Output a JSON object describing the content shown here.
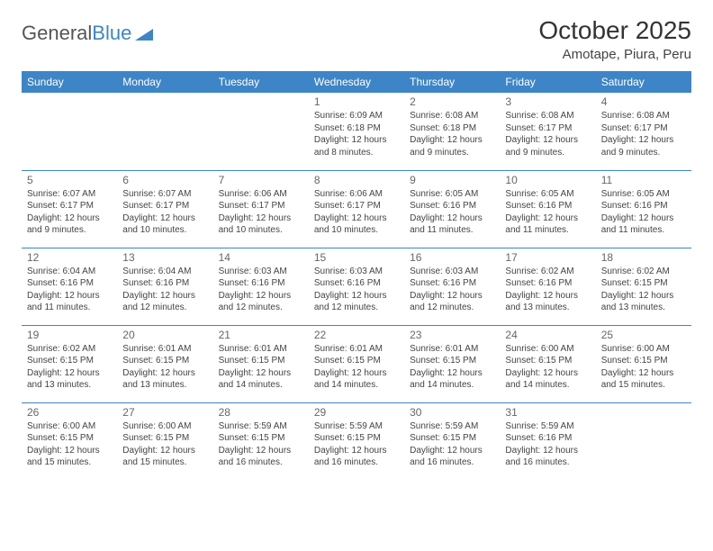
{
  "logo": {
    "word1": "General",
    "word2": "Blue"
  },
  "title": "October 2025",
  "location": "Amotape, Piura, Peru",
  "colors": {
    "header_bg": "#3d85c6",
    "header_text": "#ffffff",
    "border": "#3d85c6",
    "daynum": "#666666",
    "body_text": "#444444",
    "logo_gray": "#555555",
    "logo_blue": "#3d85c6",
    "page_bg": "#ffffff"
  },
  "weekdays": [
    "Sunday",
    "Monday",
    "Tuesday",
    "Wednesday",
    "Thursday",
    "Friday",
    "Saturday"
  ],
  "weeks": [
    [
      null,
      null,
      null,
      {
        "d": "1",
        "sr": "6:09 AM",
        "ss": "6:18 PM",
        "dl": "12 hours and 8 minutes."
      },
      {
        "d": "2",
        "sr": "6:08 AM",
        "ss": "6:18 PM",
        "dl": "12 hours and 9 minutes."
      },
      {
        "d": "3",
        "sr": "6:08 AM",
        "ss": "6:17 PM",
        "dl": "12 hours and 9 minutes."
      },
      {
        "d": "4",
        "sr": "6:08 AM",
        "ss": "6:17 PM",
        "dl": "12 hours and 9 minutes."
      }
    ],
    [
      {
        "d": "5",
        "sr": "6:07 AM",
        "ss": "6:17 PM",
        "dl": "12 hours and 9 minutes."
      },
      {
        "d": "6",
        "sr": "6:07 AM",
        "ss": "6:17 PM",
        "dl": "12 hours and 10 minutes."
      },
      {
        "d": "7",
        "sr": "6:06 AM",
        "ss": "6:17 PM",
        "dl": "12 hours and 10 minutes."
      },
      {
        "d": "8",
        "sr": "6:06 AM",
        "ss": "6:17 PM",
        "dl": "12 hours and 10 minutes."
      },
      {
        "d": "9",
        "sr": "6:05 AM",
        "ss": "6:16 PM",
        "dl": "12 hours and 11 minutes."
      },
      {
        "d": "10",
        "sr": "6:05 AM",
        "ss": "6:16 PM",
        "dl": "12 hours and 11 minutes."
      },
      {
        "d": "11",
        "sr": "6:05 AM",
        "ss": "6:16 PM",
        "dl": "12 hours and 11 minutes."
      }
    ],
    [
      {
        "d": "12",
        "sr": "6:04 AM",
        "ss": "6:16 PM",
        "dl": "12 hours and 11 minutes."
      },
      {
        "d": "13",
        "sr": "6:04 AM",
        "ss": "6:16 PM",
        "dl": "12 hours and 12 minutes."
      },
      {
        "d": "14",
        "sr": "6:03 AM",
        "ss": "6:16 PM",
        "dl": "12 hours and 12 minutes."
      },
      {
        "d": "15",
        "sr": "6:03 AM",
        "ss": "6:16 PM",
        "dl": "12 hours and 12 minutes."
      },
      {
        "d": "16",
        "sr": "6:03 AM",
        "ss": "6:16 PM",
        "dl": "12 hours and 12 minutes."
      },
      {
        "d": "17",
        "sr": "6:02 AM",
        "ss": "6:16 PM",
        "dl": "12 hours and 13 minutes."
      },
      {
        "d": "18",
        "sr": "6:02 AM",
        "ss": "6:15 PM",
        "dl": "12 hours and 13 minutes."
      }
    ],
    [
      {
        "d": "19",
        "sr": "6:02 AM",
        "ss": "6:15 PM",
        "dl": "12 hours and 13 minutes."
      },
      {
        "d": "20",
        "sr": "6:01 AM",
        "ss": "6:15 PM",
        "dl": "12 hours and 13 minutes."
      },
      {
        "d": "21",
        "sr": "6:01 AM",
        "ss": "6:15 PM",
        "dl": "12 hours and 14 minutes."
      },
      {
        "d": "22",
        "sr": "6:01 AM",
        "ss": "6:15 PM",
        "dl": "12 hours and 14 minutes."
      },
      {
        "d": "23",
        "sr": "6:01 AM",
        "ss": "6:15 PM",
        "dl": "12 hours and 14 minutes."
      },
      {
        "d": "24",
        "sr": "6:00 AM",
        "ss": "6:15 PM",
        "dl": "12 hours and 14 minutes."
      },
      {
        "d": "25",
        "sr": "6:00 AM",
        "ss": "6:15 PM",
        "dl": "12 hours and 15 minutes."
      }
    ],
    [
      {
        "d": "26",
        "sr": "6:00 AM",
        "ss": "6:15 PM",
        "dl": "12 hours and 15 minutes."
      },
      {
        "d": "27",
        "sr": "6:00 AM",
        "ss": "6:15 PM",
        "dl": "12 hours and 15 minutes."
      },
      {
        "d": "28",
        "sr": "5:59 AM",
        "ss": "6:15 PM",
        "dl": "12 hours and 16 minutes."
      },
      {
        "d": "29",
        "sr": "5:59 AM",
        "ss": "6:15 PM",
        "dl": "12 hours and 16 minutes."
      },
      {
        "d": "30",
        "sr": "5:59 AM",
        "ss": "6:15 PM",
        "dl": "12 hours and 16 minutes."
      },
      {
        "d": "31",
        "sr": "5:59 AM",
        "ss": "6:16 PM",
        "dl": "12 hours and 16 minutes."
      },
      null
    ]
  ],
  "labels": {
    "sunrise": "Sunrise:",
    "sunset": "Sunset:",
    "daylight": "Daylight:"
  }
}
